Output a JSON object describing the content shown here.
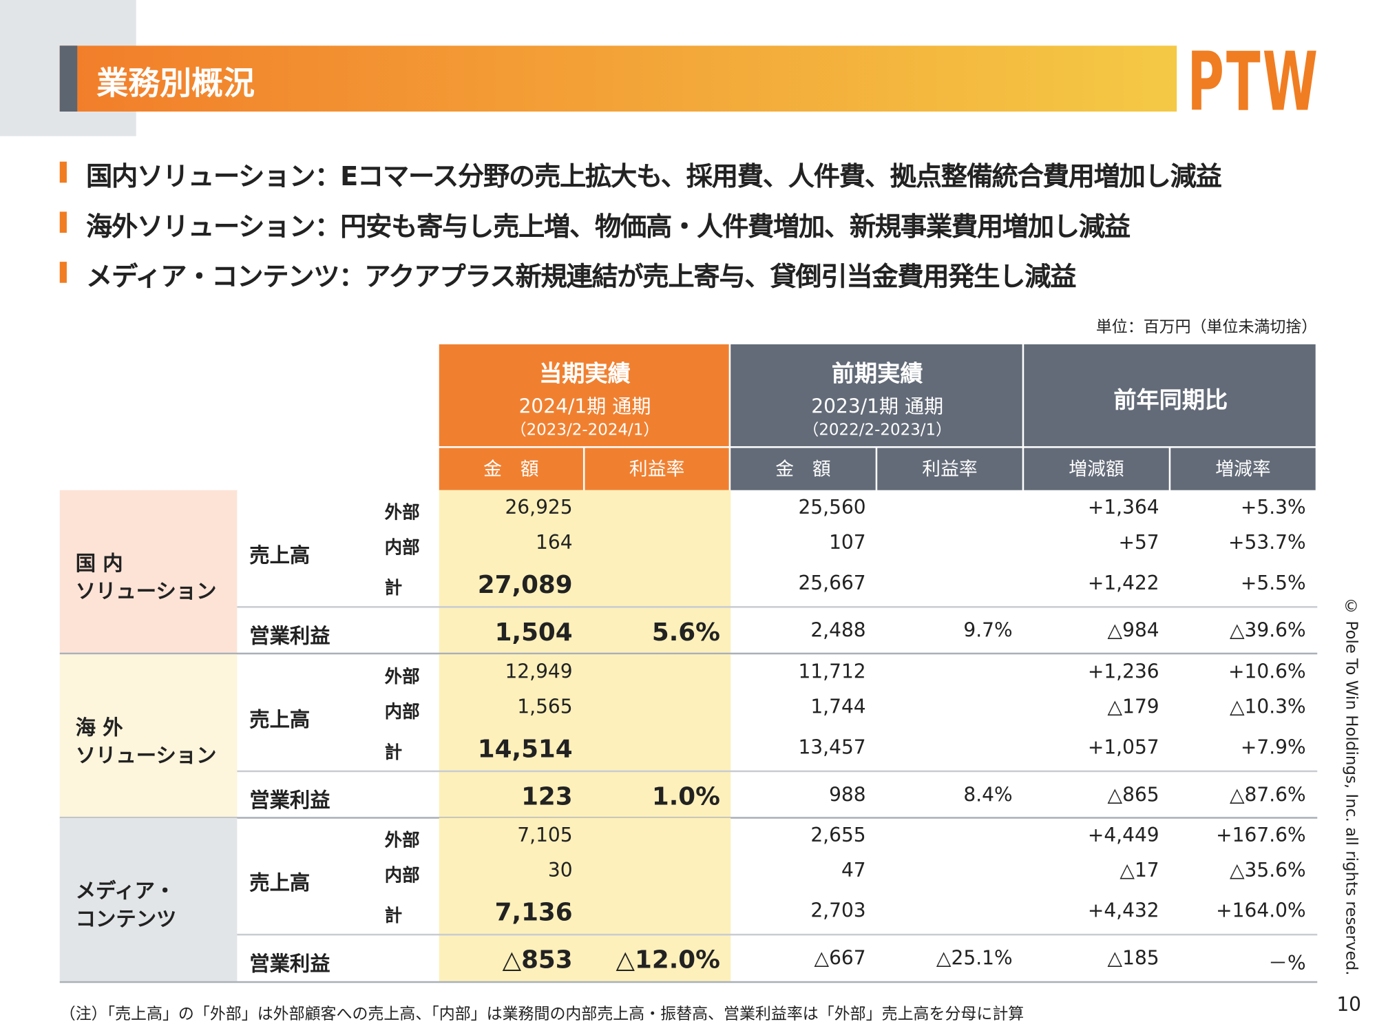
{
  "header": {
    "title": "業務別概況",
    "logo": "PTW"
  },
  "bullets": [
    "国内ソリューション：Eコマース分野の売上拡大も、採用費、人件費、拠点整備統合費用増加し減益",
    "海外ソリューション：円安も寄与し売上増、物価高・人件費増加、新規事業費用増加し減益",
    "メディア・コンテンツ：アクアプラス新規連結が売上寄与、貸倒引当金費用発生し減益"
  ],
  "unit_note": "単位：百万円（単位未満切捨）",
  "table": {
    "column_groups": [
      {
        "title": "当期実績",
        "period": "2024/1期 通期",
        "range": "（2023/2-2024/1）"
      },
      {
        "title": "前期実績",
        "period": "2023/1期 通期",
        "range": "（2022/2-2023/1）"
      },
      {
        "title": "前年同期比"
      }
    ],
    "columns": [
      "金　額",
      "利益率",
      "金　額",
      "利益率",
      "増減額",
      "増減率"
    ],
    "segments": [
      {
        "name_lines": [
          "国 内",
          "ソリューション"
        ],
        "sales": {
          "label": "売上高",
          "rows": [
            {
              "sub": "外部",
              "cur_amount": "26,925",
              "prev_amount": "25,560",
              "change": "+1,364",
              "rate": "+5.3%"
            },
            {
              "sub": "内部",
              "cur_amount": "164",
              "prev_amount": "107",
              "change": "+57",
              "rate": "+53.7%"
            },
            {
              "sub": "計",
              "cur_amount": "27,089",
              "prev_amount": "25,667",
              "change": "+1,422",
              "rate": "+5.5%"
            }
          ]
        },
        "operating_profit": {
          "label": "営業利益",
          "cur_amount": "1,504",
          "cur_margin": "5.6%",
          "prev_amount": "2,488",
          "prev_margin": "9.7%",
          "change": "△984",
          "rate": "△39.6%"
        }
      },
      {
        "name_lines": [
          "海 外",
          "ソリューション"
        ],
        "sales": {
          "label": "売上高",
          "rows": [
            {
              "sub": "外部",
              "cur_amount": "12,949",
              "prev_amount": "11,712",
              "change": "+1,236",
              "rate": "+10.6%"
            },
            {
              "sub": "内部",
              "cur_amount": "1,565",
              "prev_amount": "1,744",
              "change": "△179",
              "rate": "△10.3%"
            },
            {
              "sub": "計",
              "cur_amount": "14,514",
              "prev_amount": "13,457",
              "change": "+1,057",
              "rate": "+7.9%"
            }
          ]
        },
        "operating_profit": {
          "label": "営業利益",
          "cur_amount": "123",
          "cur_margin": "1.0%",
          "prev_amount": "988",
          "prev_margin": "8.4%",
          "change": "△865",
          "rate": "△87.6%"
        }
      },
      {
        "name_lines": [
          "メディア・",
          "コンテンツ"
        ],
        "sales": {
          "label": "売上高",
          "rows": [
            {
              "sub": "外部",
              "cur_amount": "7,105",
              "prev_amount": "2,655",
              "change": "+4,449",
              "rate": "+167.6%"
            },
            {
              "sub": "内部",
              "cur_amount": "30",
              "prev_amount": "47",
              "change": "△17",
              "rate": "△35.6%"
            },
            {
              "sub": "計",
              "cur_amount": "7,136",
              "prev_amount": "2,703",
              "change": "+4,432",
              "rate": "+164.0%"
            }
          ]
        },
        "operating_profit": {
          "label": "営業利益",
          "cur_amount": "△853",
          "cur_margin": "△12.0%",
          "prev_amount": "△667",
          "prev_margin": "△25.1%",
          "change": "△185",
          "rate": "－%"
        }
      }
    ]
  },
  "footnote": "（注）「売上高」の「外部」は外部顧客への売上高、「内部」は業務間の内部売上高・振替高、営業利益率は「外部」売上高を分母に計算",
  "copyright": "© Pole To Win Holdings, Inc. all rights reserved.",
  "page_number": "10"
}
